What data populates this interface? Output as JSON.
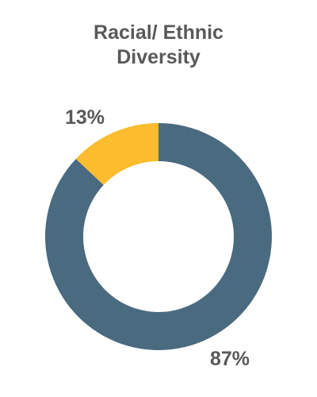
{
  "chart_data": {
    "type": "pie",
    "variant": "donut",
    "title_lines": [
      "Racial/ Ethnic",
      "Diversity"
    ],
    "categories": [
      "",
      ""
    ],
    "values": [
      87,
      13
    ],
    "labels": [
      "87%",
      "13%"
    ],
    "colors": [
      "#4a6a80",
      "#fbbc2e"
    ],
    "legend": "none"
  }
}
